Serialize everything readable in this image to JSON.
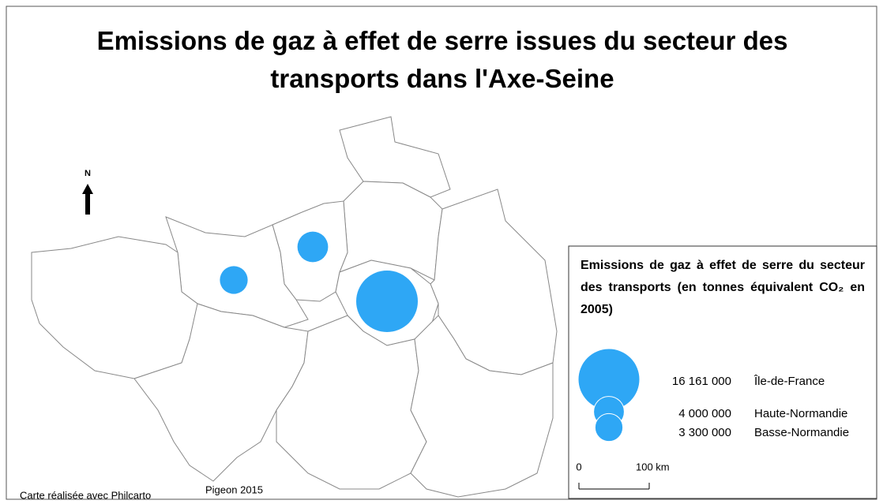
{
  "title": "Emissions de gaz à effet de serre issues du secteur des transports dans l'Axe-Seine",
  "north": "N",
  "legend": {
    "title": "Emissions de gaz à effet de serre du secteur des transports (en tonnes équivalent CO₂ en 2005)",
    "color": "#2ea7f5",
    "entries": [
      {
        "region": "Île-de-France",
        "value": 16161000,
        "value_label": "16 161 000"
      },
      {
        "region": "Haute-Normandie",
        "value": 4000000,
        "value_label": "4 000 000"
      },
      {
        "region": "Basse-Normandie",
        "value": 3300000,
        "value_label": "3 300 000"
      }
    ]
  },
  "scale": {
    "start": "0",
    "end": "100 km"
  },
  "credits": {
    "software": "Carte réalisée avec Philcarto",
    "author": "Pigeon 2015"
  }
}
